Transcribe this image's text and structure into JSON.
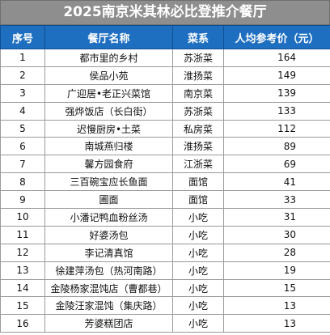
{
  "title": "2025南京米其林必比登推介餐厅",
  "headers": [
    "序号",
    "餐厅名称",
    "菜系",
    "人均参考价（元）"
  ],
  "rows": [
    {
      "no": "1",
      "name": "都市里的乡村",
      "cuisine": "苏浙菜",
      "price": "164"
    },
    {
      "no": "2",
      "name": "侯品小苑",
      "cuisine": "淮扬菜",
      "price": "149"
    },
    {
      "no": "3",
      "name": "广迎居•老正兴菜馆",
      "cuisine": "南京菜",
      "price": "139"
    },
    {
      "no": "4",
      "name": "强烨饭店（长白街）",
      "cuisine": "苏浙菜",
      "price": "133"
    },
    {
      "no": "5",
      "name": "迟慢厨房•土菜",
      "cuisine": "私房菜",
      "price": "112"
    },
    {
      "no": "6",
      "name": "南城燕归楼",
      "cuisine": "淮扬菜",
      "price": "89"
    },
    {
      "no": "7",
      "name": "馨方园食府",
      "cuisine": "江浙菜",
      "price": "69"
    },
    {
      "no": "8",
      "name": "三百碗宝应长鱼面",
      "cuisine": "面馆",
      "price": "41"
    },
    {
      "no": "9",
      "name": "圃面",
      "cuisine": "面馆",
      "price": "33"
    },
    {
      "no": "10",
      "name": "小潘记鸭血粉丝汤",
      "cuisine": "小吃",
      "price": "31"
    },
    {
      "no": "11",
      "name": "好婆汤包",
      "cuisine": "小吃",
      "price": "30"
    },
    {
      "no": "12",
      "name": "李记清真馆",
      "cuisine": "小吃",
      "price": "28"
    },
    {
      "no": "13",
      "name": "徐建萍汤包（热河南路）",
      "cuisine": "小吃",
      "price": "19"
    },
    {
      "no": "14",
      "name": "金陵杨家混饨店（曹都巷）",
      "cuisine": "小吃",
      "price": "15"
    },
    {
      "no": "15",
      "name": "金陵汪家混饨（集庆路）",
      "cuisine": "小吃",
      "price": "13"
    },
    {
      "no": "16",
      "name": "芳婆糕团店",
      "cuisine": "小吃",
      "price": "13"
    }
  ]
}
